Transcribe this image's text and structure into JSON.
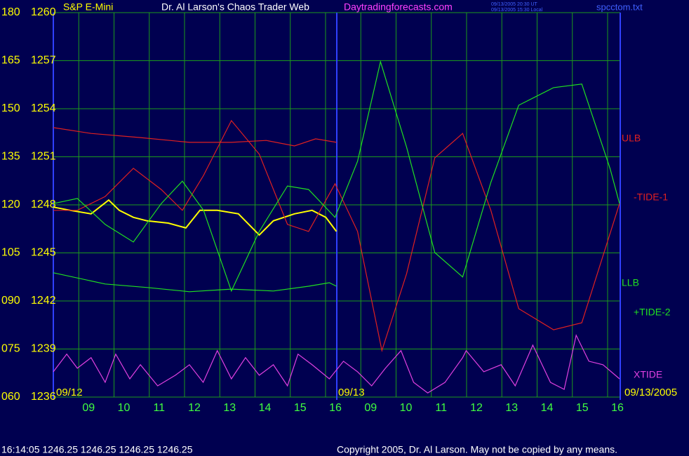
{
  "chart_data": {
    "type": "line",
    "title": "Dr. Al Larson's Chaos Trader Web",
    "subtitle": "Daytradingforecasts.com",
    "timestamps": [
      "09/13/2005 20:30 UT",
      "09/13/2005 15:30 Local"
    ],
    "file_name": "spcctom.txt",
    "date_labels": [
      "09/12",
      "09/13",
      "09/13/2005"
    ],
    "footer_quote": "16:14:05  1246.25 1246.25 1246.25 1246.25",
    "copyright": "Copyright 2005, Dr. Al Larson. May not be copied by any means.",
    "xlim": [
      0,
      16.08
    ],
    "xticks": [
      {
        "value": 1,
        "label": "09"
      },
      {
        "value": 2,
        "label": "10"
      },
      {
        "value": 3,
        "label": "11"
      },
      {
        "value": 4,
        "label": "12"
      },
      {
        "value": 5,
        "label": "13"
      },
      {
        "value": 6,
        "label": "14"
      },
      {
        "value": 7,
        "label": "15"
      },
      {
        "value": 8,
        "label": "16"
      },
      {
        "value": 9,
        "label": "09"
      },
      {
        "value": 10,
        "label": "10"
      },
      {
        "value": 11,
        "label": "11"
      },
      {
        "value": 12,
        "label": "12"
      },
      {
        "value": 13,
        "label": "13"
      },
      {
        "value": 14,
        "label": "14"
      },
      {
        "value": 15,
        "label": "15"
      },
      {
        "value": 16,
        "label": "16"
      }
    ],
    "ylim": [
      60,
      180
    ],
    "yticks": [
      {
        "value": 60,
        "label": "060"
      },
      {
        "value": 75,
        "label": "075"
      },
      {
        "value": 90,
        "label": "090"
      },
      105,
      120,
      135,
      150,
      165,
      180
    ],
    "y2lim": [
      1236,
      1260
    ],
    "y2ticks": [
      1236,
      1239,
      1242,
      1245,
      1248,
      1251,
      1254,
      1257,
      1260
    ],
    "grid": true,
    "series": [
      {
        "name": "S&P E-Mini",
        "color": "#ffff00",
        "x": [
          0,
          0.48,
          1.07,
          1.57,
          1.87,
          2.27,
          2.66,
          3.26,
          3.76,
          4.16,
          4.65,
          5.25,
          5.84,
          6.24,
          6.84,
          7.34,
          7.73,
          8.03
        ],
        "values": [
          119.3,
          118.3,
          117.2,
          121.5,
          118.3,
          116.1,
          115.0,
          114.3,
          112.8,
          118.3,
          118.3,
          117.2,
          110.6,
          115.0,
          117.2,
          118.3,
          116.1,
          111.7
        ]
      },
      {
        "name": "ULB",
        "color": "#e02020",
        "x": [
          0,
          1.07,
          2.47,
          3.86,
          5.05,
          6.04,
          6.84,
          7.44,
          8.03
        ],
        "values": [
          144.1,
          142.3,
          141.0,
          139.5,
          139.5,
          140.1,
          138.4,
          140.6,
          139.5
        ]
      },
      {
        "name": "-TIDE-1",
        "color": "#e02020",
        "x": [
          0,
          0.68,
          1.47,
          2.27,
          3.06,
          3.66,
          4.26,
          5.05,
          5.84,
          6.64,
          7.24,
          7.99,
          8.63,
          9.32,
          10.02,
          10.82,
          11.61,
          12.41,
          13.2,
          14.19,
          14.99,
          16.06
        ],
        "values": [
          118.3,
          118.3,
          122.6,
          131.4,
          124.8,
          118.3,
          129.2,
          146.3,
          135.8,
          113.9,
          111.7,
          126.6,
          111.7,
          74.5,
          98.5,
          134.7,
          142.3,
          118.3,
          87.6,
          81.0,
          83.2,
          120.4
        ]
      },
      {
        "name": "LLB",
        "color": "#20e020",
        "x": [
          0,
          1.47,
          2.66,
          3.86,
          5.05,
          6.24,
          7.24,
          7.83,
          8.03
        ],
        "values": [
          98.8,
          95.3,
          94.2,
          92.9,
          93.7,
          93.1,
          94.6,
          95.7,
          94.6
        ]
      },
      {
        "name": "+TIDE-2",
        "color": "#20e020",
        "x": [
          0,
          0.68,
          1.47,
          2.27,
          3.06,
          3.66,
          4.26,
          5.05,
          5.84,
          6.64,
          7.24,
          7.99,
          8.63,
          9.28,
          10.02,
          10.82,
          11.61,
          12.41,
          13.2,
          14.19,
          14.99,
          15.79,
          16.06
        ],
        "values": [
          120.4,
          122.0,
          113.9,
          108.4,
          120.4,
          127.4,
          118.3,
          93.1,
          111.7,
          125.9,
          124.8,
          116.1,
          133.6,
          164.7,
          138.0,
          105.1,
          97.5,
          127.0,
          151.1,
          156.6,
          157.7,
          131.4,
          120.4
        ]
      },
      {
        "name": "XTIDE",
        "color": "#e040e0",
        "x": [
          0,
          0.38,
          0.68,
          1.07,
          1.47,
          1.77,
          2.17,
          2.47,
          2.96,
          3.46,
          3.86,
          4.25,
          4.65,
          5.05,
          5.45,
          5.84,
          6.24,
          6.64,
          6.94,
          7.34,
          7.83,
          8.23,
          8.63,
          9.03,
          9.42,
          9.86,
          10.22,
          10.62,
          11.11,
          11.61,
          11.71,
          12.21,
          12.7,
          13.1,
          13.6,
          14.1,
          14.49,
          14.83,
          15.19,
          15.59,
          16.06
        ],
        "values": [
          67.9,
          73.4,
          69.0,
          72.3,
          64.6,
          73.4,
          65.7,
          70.1,
          63.5,
          66.8,
          70.1,
          64.6,
          74.5,
          65.7,
          72.3,
          66.8,
          70.1,
          63.5,
          73.4,
          70.1,
          65.7,
          71.2,
          67.9,
          63.5,
          69.0,
          74.5,
          64.6,
          61.3,
          64.6,
          72.3,
          74.5,
          67.9,
          70.1,
          63.5,
          76.2,
          64.6,
          62.4,
          79.3,
          71.2,
          70.1,
          65.7
        ]
      }
    ]
  }
}
